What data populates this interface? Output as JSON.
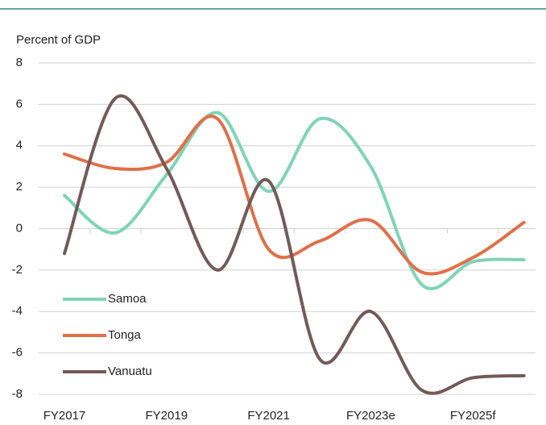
{
  "chart_data": {
    "type": "line",
    "y_label": "Percent of GDP",
    "categories": [
      "FY2017",
      null,
      "FY2019",
      null,
      "FY2021",
      null,
      "FY2023e",
      null,
      "FY2025f",
      null
    ],
    "series": [
      {
        "name": "Samoa",
        "color": "#7fd4b8",
        "values": [
          1.6,
          -0.2,
          2.6,
          5.6,
          1.8,
          5.3,
          3.0,
          -2.7,
          -1.6,
          -1.5
        ]
      },
      {
        "name": "Tonga",
        "color": "#e0704a",
        "values": [
          3.6,
          2.9,
          3.2,
          5.3,
          -1.0,
          -0.6,
          0.4,
          -2.1,
          -1.4,
          0.3
        ]
      },
      {
        "name": "Vanuatu",
        "color": "#735a58",
        "values": [
          -1.2,
          6.3,
          2.9,
          -2.0,
          2.3,
          -6.3,
          -4.0,
          -7.8,
          -7.2,
          -7.1
        ]
      }
    ],
    "ylim": [
      -8,
      8
    ],
    "yticks": [
      -8,
      -6,
      -4,
      -2,
      0,
      2,
      4,
      6,
      8
    ],
    "grid": true
  }
}
